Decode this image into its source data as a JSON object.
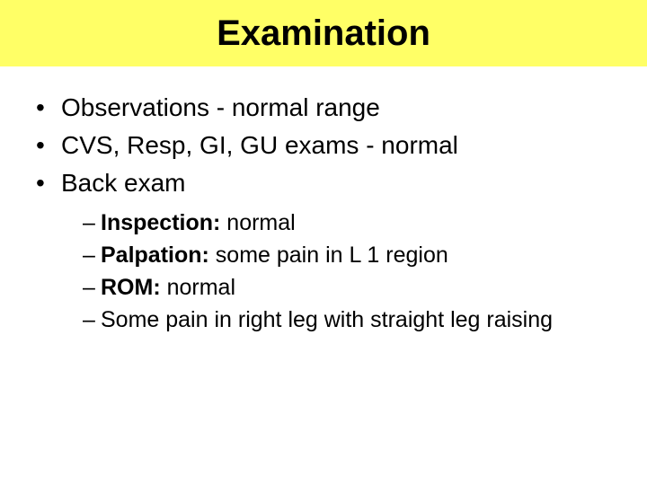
{
  "title": "Examination",
  "title_bg": "#ffff66",
  "title_color": "#000000",
  "title_fontsize": 40,
  "body_bg": "#ffffff",
  "bullets": [
    {
      "text": "Observations  - normal range"
    },
    {
      "text": "CVS, Resp, GI, GU exams - normal"
    },
    {
      "text": "Back exam"
    }
  ],
  "sub_items": [
    {
      "label": "Inspection:",
      "value": "  normal"
    },
    {
      "label": "Palpation:",
      "value": "   some pain in L 1 region"
    },
    {
      "label": "ROM:",
      "value": "          normal"
    },
    {
      "label": "",
      "value": "Some pain in right leg with straight leg raising"
    }
  ],
  "bullet_fontsize": 28,
  "sub_fontsize": 25
}
